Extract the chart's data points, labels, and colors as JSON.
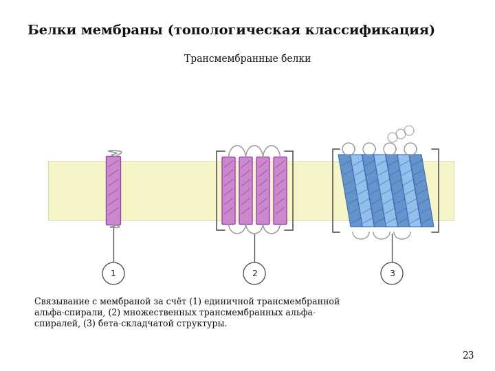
{
  "title": "Белки мембраны (топологическая классификация)",
  "subtitle": "Трансмембранные белки",
  "caption_line1": "Связывание с мембраной за счёт (1) единичной трансмембранной",
  "caption_line2": "альфа-спирали, (2) множественных трансмембранных альфа-",
  "caption_line3": "спиралей, (3) бета-складчатой структуры.",
  "page_num": "23",
  "membrane_color": "#f5f5c8",
  "membrane_border": "#d8d8a0",
  "helix_color": "#cc88cc",
  "helix_edge": "#9944aa",
  "helix_line": "#9944aa",
  "barrel_color1": "#5588cc",
  "barrel_color2": "#88bbee",
  "barrel_edge": "#3366aa",
  "bracket_color": "#666666",
  "line_color": "#444444",
  "loop_color": "#999999",
  "bg_color": "#ffffff",
  "title_fontsize": 14,
  "subtitle_fontsize": 10,
  "caption_fontsize": 9
}
